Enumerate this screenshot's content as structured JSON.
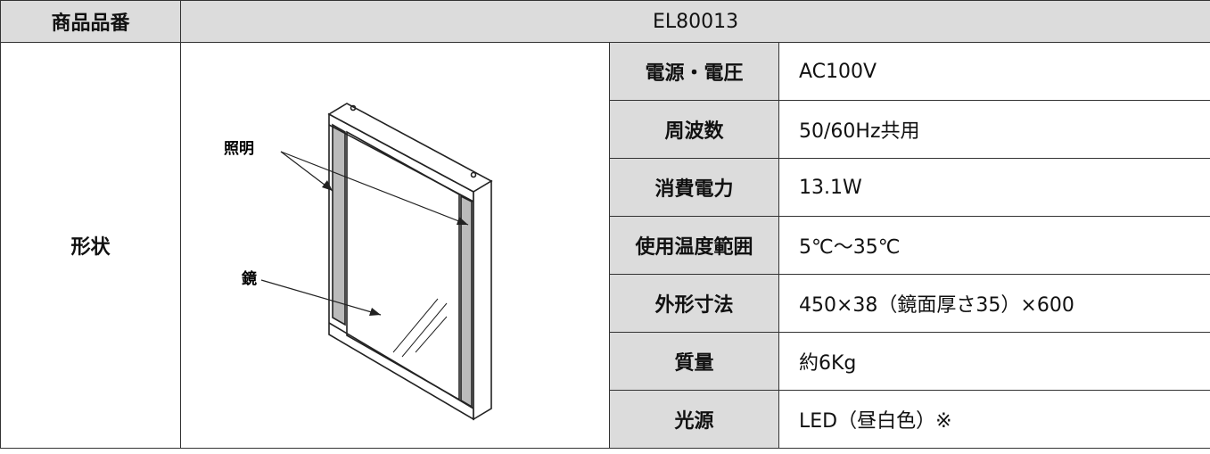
{
  "table": {
    "header": {
      "label": "商品品番",
      "value": "EL80013"
    },
    "shape_label": "形状",
    "diagram": {
      "labels": [
        "照明",
        "鏡"
      ]
    },
    "rows": [
      [
        "電源・電圧",
        "AC100V"
      ],
      [
        "周波数",
        "50/60Hz共用"
      ],
      [
        "消費電力",
        "13.1W"
      ],
      [
        "使用温度範囲",
        "5℃〜35℃"
      ],
      [
        "外形寸法",
        "450×38（鏡面厚さ35）×600"
      ],
      [
        "質量",
        "約6Kg"
      ],
      [
        "光源",
        "LED（昼白色）※"
      ]
    ]
  }
}
